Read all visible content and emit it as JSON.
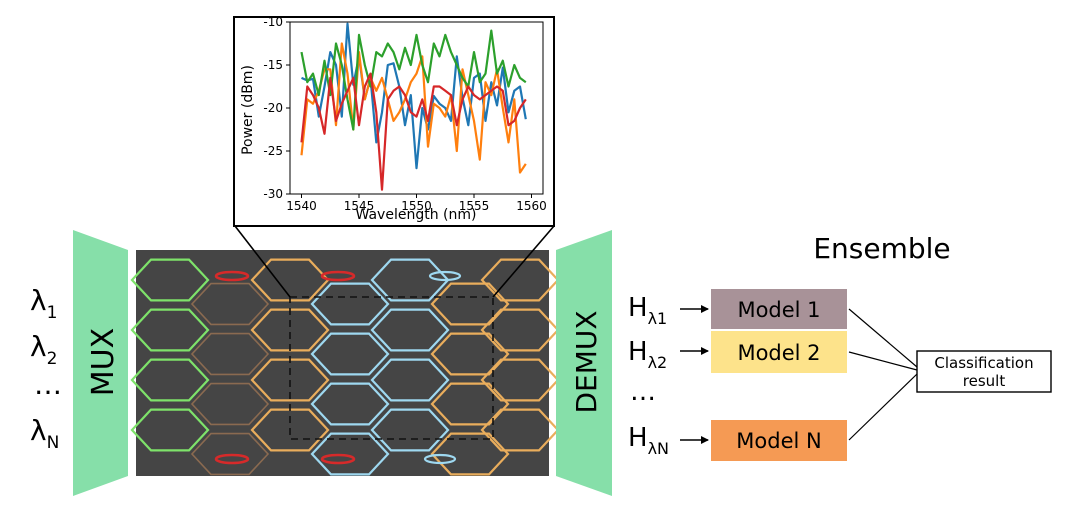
{
  "inputs": {
    "wavelengths": [
      {
        "base": "λ",
        "sub": "1"
      },
      {
        "base": "λ",
        "sub": "2"
      },
      {
        "base": "…",
        "sub": ""
      },
      {
        "base": "λ",
        "sub": "N"
      }
    ]
  },
  "mux_label": "MUX",
  "demux_label": "DEMUX",
  "ensemble": {
    "title": "Ensemble",
    "outputs": [
      {
        "base": "H",
        "sub": "λ1"
      },
      {
        "base": "H",
        "sub": "λ2"
      },
      {
        "base": "…",
        "sub": ""
      },
      {
        "base": "H",
        "sub": "λN"
      }
    ],
    "models": [
      {
        "label": "Model 1",
        "color": "#a89298"
      },
      {
        "label": "Model 2",
        "color": "#fde38b"
      },
      {
        "label": "Model N",
        "color": "#f59a54"
      }
    ],
    "result_lines": [
      "Classification",
      "result"
    ]
  },
  "colors": {
    "mux_green": "#86dfa9",
    "chip_bg": "#454545",
    "lattice_orange": "#e9ad5c",
    "lattice_cyan": "#9ed8f0",
    "lattice_green": "#7ee36a",
    "lattice_red": "#d62a2a",
    "lattice_brown": "#8a6a50"
  },
  "chart_data": {
    "type": "line",
    "xlabel": "Wavelength (nm)",
    "ylabel": "Power (dBm)",
    "xlim": [
      1539,
      1561
    ],
    "ylim": [
      -30,
      -10
    ],
    "xticks": [
      1540,
      1545,
      1550,
      1555,
      1560
    ],
    "yticks": [
      -10,
      -15,
      -20,
      -25,
      -30
    ],
    "grid": false,
    "x": [
      1540,
      1540.5,
      1541,
      1541.5,
      1542,
      1542.5,
      1543,
      1543.5,
      1544,
      1544.5,
      1545,
      1545.5,
      1546,
      1546.5,
      1547,
      1547.5,
      1548,
      1548.5,
      1549,
      1549.5,
      1550,
      1550.5,
      1551,
      1551.5,
      1552,
      1552.5,
      1553,
      1553.5,
      1554,
      1554.5,
      1555,
      1555.5,
      1556,
      1556.5,
      1557,
      1557.5,
      1558,
      1558.5,
      1559,
      1559.5
    ],
    "series": [
      {
        "color": "#1f77b4",
        "values": [
          -16.5,
          -16.8,
          -16.6,
          -21,
          -17.5,
          -13.5,
          -15,
          -21,
          -10.2,
          -17.3,
          -14,
          -19,
          -16.5,
          -24,
          -20.5,
          -15,
          -14.8,
          -17.5,
          -22,
          -18.5,
          -27,
          -20,
          -22.5,
          -18.6,
          -19.5,
          -20,
          -21.5,
          -14,
          -18.8,
          -22,
          -16.5,
          -16,
          -21.5,
          -17,
          -19.7,
          -15.3,
          -20.5,
          -18,
          -17.5,
          -21.3
        ]
      },
      {
        "color": "#ff7f0e",
        "values": [
          -25.5,
          -19,
          -19.5,
          -18,
          -15.5,
          -15.5,
          -22,
          -12.5,
          -16,
          -22.5,
          -13.5,
          -19,
          -16.5,
          -18,
          -16.5,
          -19,
          -21.5,
          -20.5,
          -19,
          -17,
          -16,
          -14,
          -24.5,
          -19.5,
          -20,
          -21,
          -18.5,
          -25,
          -15.5,
          -18.5,
          -21.5,
          -26,
          -17,
          -18.5,
          -15.5,
          -20,
          -24,
          -19,
          -27.5,
          -26.5
        ]
      },
      {
        "color": "#2ca02c",
        "values": [
          -13.5,
          -17,
          -16,
          -18.5,
          -14.5,
          -18.5,
          -12.5,
          -15,
          -19,
          -22.5,
          -11.5,
          -15,
          -17.5,
          -13.5,
          -14,
          -12.5,
          -13.5,
          -15.5,
          -13,
          -15,
          -11.5,
          -15,
          -17,
          -12.5,
          -14,
          -11.5,
          -13.5,
          -15,
          -16.5,
          -17.5,
          -13.5,
          -17,
          -16,
          -11,
          -16,
          -14.5,
          -17.5,
          -15,
          -16.5,
          -17
        ]
      },
      {
        "color": "#d62728",
        "values": [
          -24,
          -17.5,
          -18.5,
          -20,
          -23,
          -16.5,
          -21.5,
          -19.5,
          -18,
          -16.5,
          -22,
          -17.5,
          -16,
          -20.5,
          -29.5,
          -19,
          -18,
          -17.5,
          -18.5,
          -20.5,
          -21,
          -19,
          -21.5,
          -17.5,
          -17.5,
          -18,
          -18.5,
          -22,
          -19,
          -17.5,
          -18.5,
          -19,
          -18.5,
          -18,
          -17.5,
          -18,
          -22,
          -21.5,
          -20,
          -19
        ]
      }
    ]
  }
}
